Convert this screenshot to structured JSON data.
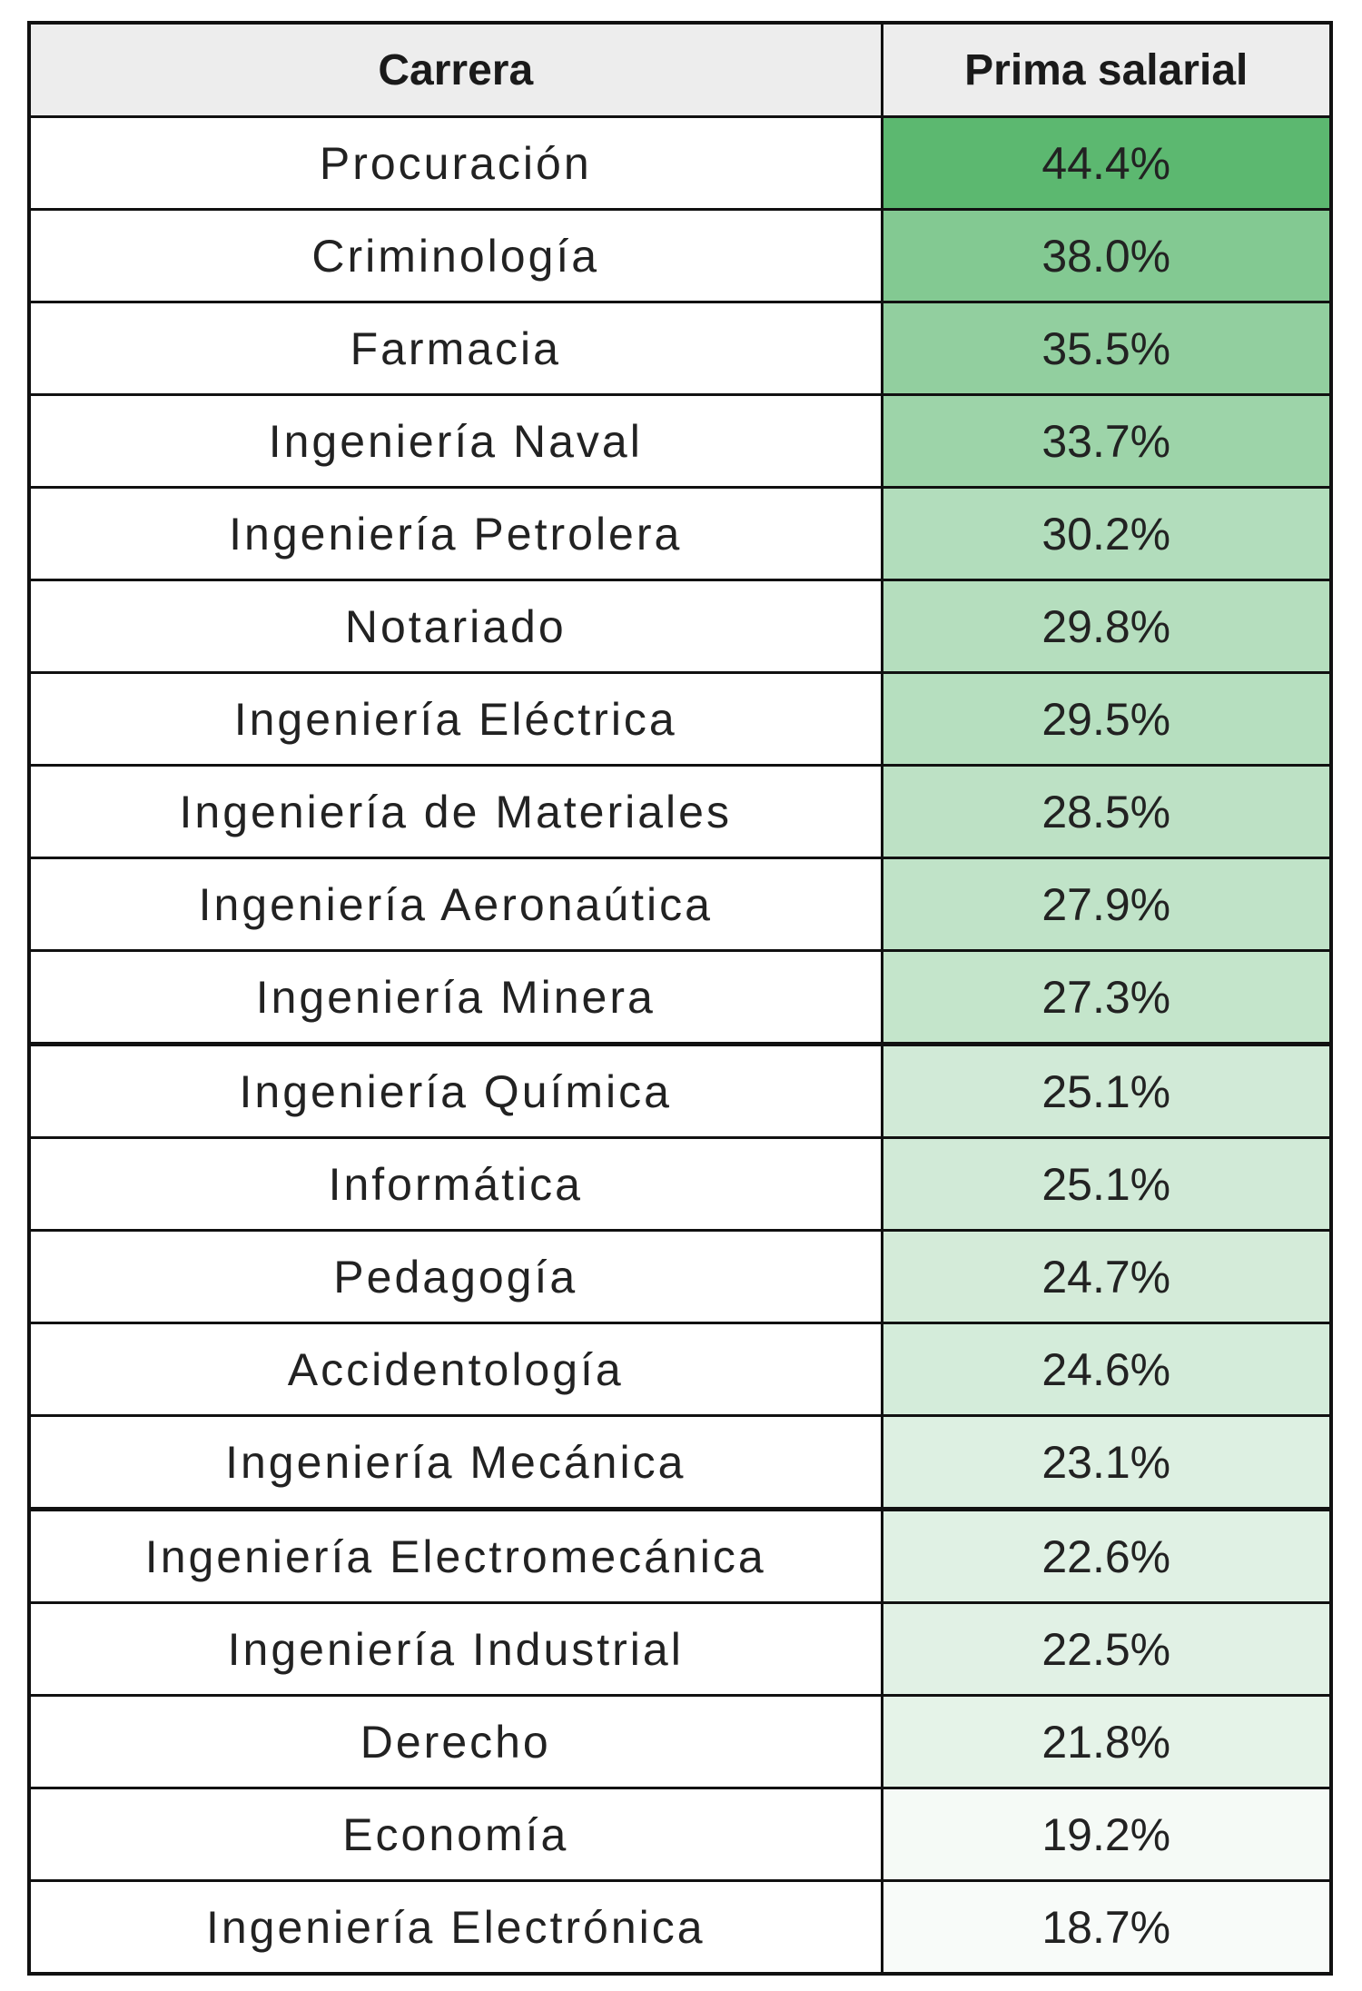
{
  "chart_data": {
    "type": "table",
    "columns": [
      "Carrera",
      "Prima salarial"
    ],
    "rows": [
      {
        "career": "Procuración",
        "premium": "44.4%",
        "value": 44.4
      },
      {
        "career": "Criminología",
        "premium": "38.0%",
        "value": 38.0
      },
      {
        "career": "Farmacia",
        "premium": "35.5%",
        "value": 35.5
      },
      {
        "career": "Ingeniería Naval",
        "premium": "33.7%",
        "value": 33.7
      },
      {
        "career": "Ingeniería Petrolera",
        "premium": "30.2%",
        "value": 30.2
      },
      {
        "career": "Notariado",
        "premium": "29.8%",
        "value": 29.8
      },
      {
        "career": "Ingeniería Eléctrica",
        "premium": "29.5%",
        "value": 29.5
      },
      {
        "career": "Ingeniería de Materiales",
        "premium": "28.5%",
        "value": 28.5
      },
      {
        "career": "Ingeniería Aeronaútica",
        "premium": "27.9%",
        "value": 27.9
      },
      {
        "career": "Ingeniería Minera",
        "premium": "27.3%",
        "value": 27.3
      },
      {
        "career": "Ingeniería Química",
        "premium": "25.1%",
        "value": 25.1
      },
      {
        "career": "Informática",
        "premium": "25.1%",
        "value": 25.1
      },
      {
        "career": "Pedagogía",
        "premium": "24.7%",
        "value": 24.7
      },
      {
        "career": "Accidentología",
        "premium": "24.6%",
        "value": 24.6
      },
      {
        "career": "Ingeniería Mecánica",
        "premium": "23.1%",
        "value": 23.1
      },
      {
        "career": "Ingeniería Electromecánica",
        "premium": "22.6%",
        "value": 22.6
      },
      {
        "career": "Ingeniería Industrial",
        "premium": "22.5%",
        "value": 22.5
      },
      {
        "career": "Derecho",
        "premium": "21.8%",
        "value": 21.8
      },
      {
        "career": "Economía",
        "premium": "19.2%",
        "value": 19.2
      },
      {
        "career": "Ingeniería Electrónica",
        "premium": "18.7%",
        "value": 18.7
      }
    ],
    "color_scale": {
      "low_color": "#f8fbf9",
      "high_color": "#5cb870"
    }
  }
}
